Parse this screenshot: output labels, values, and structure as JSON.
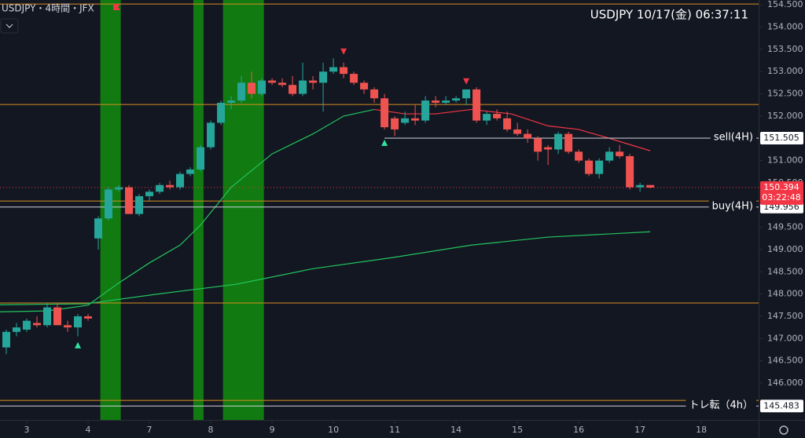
{
  "header": {
    "symbol": "USDJPY・4時間・JFX",
    "clock": "USDJPY   10/17(金)   06:37:11"
  },
  "chart_data": {
    "type": "candlestick",
    "ohlc": [
      [
        146.8,
        147.2,
        146.65,
        147.15
      ],
      [
        147.15,
        147.35,
        147.05,
        147.25
      ],
      [
        147.2,
        147.45,
        147.15,
        147.4
      ],
      [
        147.35,
        147.5,
        147.25,
        147.3
      ],
      [
        147.3,
        147.8,
        147.25,
        147.7
      ],
      [
        147.7,
        147.8,
        147.3,
        147.3
      ],
      [
        147.3,
        147.4,
        147.15,
        147.25
      ],
      [
        147.25,
        147.55,
        147.05,
        147.5
      ],
      [
        147.5,
        147.55,
        147.4,
        147.45
      ],
      [
        149.25,
        149.75,
        149.0,
        149.7
      ],
      [
        149.7,
        150.4,
        149.65,
        150.35
      ],
      [
        150.35,
        150.45,
        150.3,
        150.4
      ],
      [
        150.4,
        150.45,
        149.8,
        149.8
      ],
      [
        149.8,
        150.25,
        149.75,
        150.2
      ],
      [
        150.2,
        150.35,
        150.1,
        150.3
      ],
      [
        150.3,
        150.5,
        150.25,
        150.45
      ],
      [
        150.45,
        150.55,
        150.35,
        150.4
      ],
      [
        150.4,
        150.75,
        150.35,
        150.7
      ],
      [
        150.7,
        150.85,
        150.65,
        150.8
      ],
      [
        150.8,
        151.35,
        150.75,
        151.3
      ],
      [
        151.3,
        151.9,
        151.25,
        151.85
      ],
      [
        151.85,
        152.35,
        151.8,
        152.3
      ],
      [
        152.3,
        152.45,
        152.15,
        152.35
      ],
      [
        152.35,
        152.9,
        152.3,
        152.75
      ],
      [
        152.75,
        153.0,
        152.4,
        152.5
      ],
      [
        152.5,
        152.85,
        152.45,
        152.8
      ],
      [
        152.8,
        152.85,
        152.7,
        152.75
      ],
      [
        152.75,
        152.85,
        152.65,
        152.7
      ],
      [
        152.7,
        152.9,
        152.45,
        152.5
      ],
      [
        152.5,
        153.2,
        152.45,
        152.8
      ],
      [
        152.8,
        152.9,
        152.6,
        152.75
      ],
      [
        152.75,
        153.2,
        152.1,
        153.0
      ],
      [
        153.0,
        153.3,
        152.95,
        153.1
      ],
      [
        153.1,
        153.2,
        152.85,
        152.95
      ],
      [
        152.95,
        153.0,
        152.7,
        152.75
      ],
      [
        152.75,
        152.8,
        152.5,
        152.6
      ],
      [
        152.6,
        152.65,
        152.3,
        152.4
      ],
      [
        152.4,
        152.5,
        151.7,
        151.75
      ],
      [
        151.95,
        152.0,
        151.55,
        151.7
      ],
      [
        151.85,
        152.1,
        151.8,
        151.95
      ],
      [
        151.95,
        152.25,
        151.8,
        151.9
      ],
      [
        151.9,
        152.45,
        151.85,
        152.35
      ],
      [
        152.35,
        152.45,
        152.2,
        152.3
      ],
      [
        152.3,
        152.45,
        152.25,
        152.35
      ],
      [
        152.35,
        152.45,
        152.3,
        152.4
      ],
      [
        152.4,
        152.6,
        152.25,
        152.6
      ],
      [
        152.6,
        152.65,
        151.85,
        151.9
      ],
      [
        151.9,
        152.1,
        151.8,
        152.05
      ],
      [
        152.05,
        152.15,
        151.9,
        151.95
      ],
      [
        151.95,
        152.1,
        151.65,
        151.7
      ],
      [
        151.7,
        151.85,
        151.55,
        151.6
      ],
      [
        151.6,
        151.7,
        151.4,
        151.5
      ],
      [
        151.5,
        151.55,
        151.0,
        151.2
      ],
      [
        151.3,
        151.35,
        150.9,
        151.25
      ],
      [
        151.25,
        151.65,
        151.15,
        151.6
      ],
      [
        151.6,
        151.65,
        151.15,
        151.2
      ],
      [
        151.2,
        151.25,
        150.95,
        151.0
      ],
      [
        151.0,
        151.05,
        150.65,
        150.7
      ],
      [
        150.7,
        151.05,
        150.6,
        151.0
      ],
      [
        151.0,
        151.3,
        150.95,
        151.2
      ],
      [
        151.2,
        151.35,
        151.05,
        151.1
      ],
      [
        151.1,
        151.15,
        150.35,
        150.4
      ],
      [
        150.4,
        150.5,
        150.3,
        150.45
      ],
      [
        150.45,
        150.45,
        150.38,
        150.394
      ]
    ],
    "up_color": "#26a69a",
    "down_color": "#ef5350",
    "xlim": [
      -0.615,
      73.6
    ],
    "ylim": [
      145.17,
      154.61
    ],
    "xticks": [
      {
        "value": 2,
        "label": "3"
      },
      {
        "value": 8,
        "label": "4"
      },
      {
        "value": 14,
        "label": "7"
      },
      {
        "value": 20,
        "label": "8"
      },
      {
        "value": 26,
        "label": "9"
      },
      {
        "value": 32,
        "label": "10"
      },
      {
        "value": 38,
        "label": "11"
      },
      {
        "value": 44,
        "label": "14"
      },
      {
        "value": 50,
        "label": "15"
      },
      {
        "value": 56,
        "label": "16"
      },
      {
        "value": 62,
        "label": "17"
      },
      {
        "value": 68,
        "label": "18"
      }
    ],
    "yticks": [
      {
        "value": 154.5,
        "label": "154.500"
      },
      {
        "value": 154,
        "label": "154.000"
      },
      {
        "value": 153.5,
        "label": "153.500"
      },
      {
        "value": 153,
        "label": "153.000"
      },
      {
        "value": 152.5,
        "label": "152.500"
      },
      {
        "value": 152,
        "label": "152.000"
      },
      {
        "value": 151.5,
        "label": "151.500"
      },
      {
        "value": 151,
        "label": "151.000"
      },
      {
        "value": 150.5,
        "label": "150.500"
      },
      {
        "value": 150,
        "label": "150.000"
      },
      {
        "value": 149.5,
        "label": "149.500"
      },
      {
        "value": 149,
        "label": "149.000"
      },
      {
        "value": 148.5,
        "label": "148.500"
      },
      {
        "value": 148,
        "label": "148.000"
      },
      {
        "value": 147.5,
        "label": "147.500"
      },
      {
        "value": 147,
        "label": "147.000"
      },
      {
        "value": 146.5,
        "label": "146.500"
      },
      {
        "value": 146,
        "label": "146.000"
      }
    ],
    "bands": [
      [
        9.2,
        11.2
      ],
      [
        18.3,
        19.3
      ],
      [
        21.2,
        25.2
      ]
    ],
    "band_color": "#117a11",
    "levels": [
      154.52,
      152.26,
      150.09,
      147.8,
      145.61
    ],
    "level_color": "#d98e1e",
    "ma": [
      {
        "color": "#22c55e",
        "x": [
          -0.615,
          4,
          8,
          11,
          14,
          17,
          19,
          22,
          26,
          30,
          33,
          36
        ],
        "values": [
          147.6,
          147.62,
          147.75,
          148.25,
          148.7,
          149.1,
          149.55,
          150.4,
          151.15,
          151.6,
          152.0,
          152.15
        ]
      },
      {
        "color": "#f23645",
        "x": [
          36,
          39,
          42,
          45.5,
          49.4,
          53,
          56,
          59,
          63
        ],
        "values": [
          152.15,
          152.05,
          152.05,
          152.15,
          152.05,
          151.78,
          151.7,
          151.5,
          151.22
        ]
      },
      {
        "color": "#22c55e",
        "x": [
          -0.615,
          7.8,
          14.8,
          22.5,
          30,
          37.8,
          45.5,
          53,
          63
        ],
        "values": [
          147.76,
          147.78,
          148.0,
          148.22,
          148.57,
          148.82,
          149.1,
          149.28,
          149.4
        ]
      }
    ],
    "lines": [
      {
        "name": "sell(4H)",
        "value": 151.505,
        "start": 37,
        "color": "#d1d4dc"
      },
      {
        "name": "buy(4H)",
        "value": 149.956,
        "start": -0.615,
        "color": "#d1d4dc"
      },
      {
        "name": "トレ転（4h）",
        "value": 145.483,
        "start": -0.615,
        "color": "#d1d4dc"
      }
    ],
    "last": {
      "value": 150.394,
      "countdown": "03:22:48",
      "color": "#f23645"
    },
    "signals": [
      {
        "x": 33,
        "y": 153.45,
        "dir": "down"
      },
      {
        "x": 45,
        "y": 152.78,
        "dir": "down"
      },
      {
        "x": 7,
        "y": 146.85,
        "dir": "up"
      },
      {
        "x": 37,
        "y": 151.4,
        "dir": "up"
      }
    ]
  }
}
